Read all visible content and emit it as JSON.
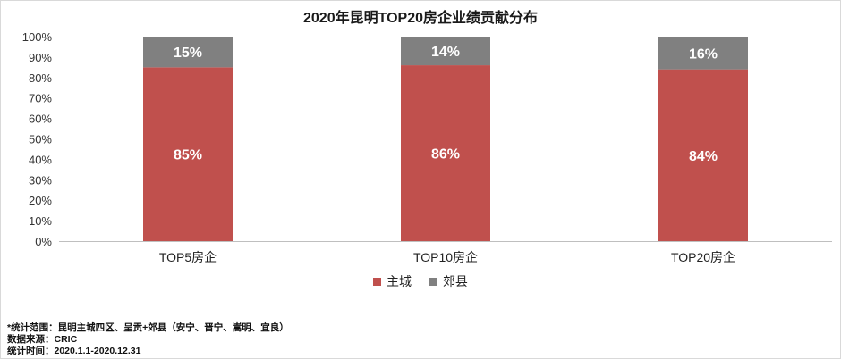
{
  "title": "2020年昆明TOP20房企业绩贡献分布",
  "colors": {
    "main": "#C0504D",
    "suburb": "#808080"
  },
  "chart_data": {
    "type": "bar",
    "stacked": true,
    "title": "2020年昆明TOP20房企业绩贡献分布",
    "categories": [
      "TOP5房企",
      "TOP10房企",
      "TOP20房企"
    ],
    "series": [
      {
        "name": "主城",
        "values": [
          85,
          86,
          84
        ],
        "labels": [
          "85%",
          "86%",
          "84%"
        ],
        "color": "#C0504D"
      },
      {
        "name": "郊县",
        "values": [
          15,
          14,
          16
        ],
        "labels": [
          "15%",
          "14%",
          "16%"
        ],
        "color": "#808080"
      }
    ],
    "y_ticks": [
      "0%",
      "10%",
      "20%",
      "30%",
      "40%",
      "50%",
      "60%",
      "70%",
      "80%",
      "90%",
      "100%"
    ],
    "ylim": [
      0,
      100
    ],
    "grid": false,
    "legend": "bottom"
  },
  "legend": [
    "主城",
    "郊县"
  ],
  "notes": [
    "*统计范围：昆明主城四区、呈贡+郊县（安宁、晋宁、嵩明、宜良）",
    "数据来源：CRIC",
    "统计时间：2020.1.1-2020.12.31"
  ]
}
